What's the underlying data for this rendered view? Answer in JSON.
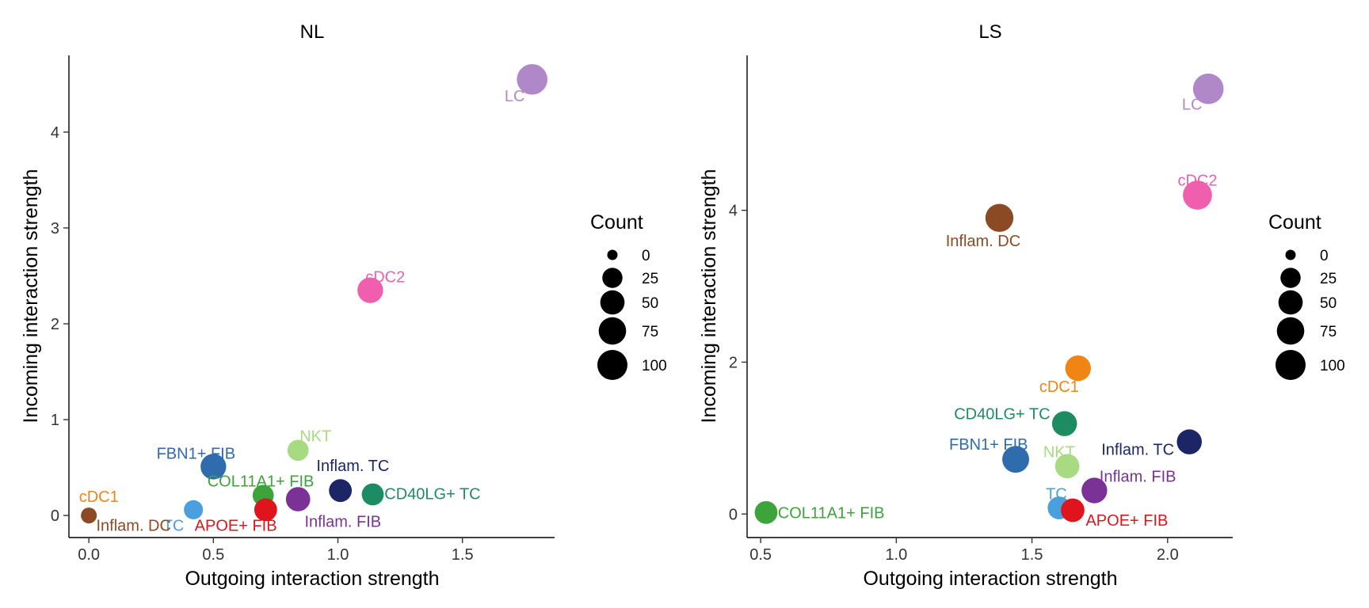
{
  "chart_data": [
    {
      "type": "scatter",
      "title": "NL",
      "xlabel": "Outgoing interaction strength",
      "ylabel": "Incoming interaction strength",
      "xlim": [
        -0.08,
        1.87
      ],
      "ylim": [
        -0.23,
        4.8
      ],
      "xticks": [
        0.0,
        0.5,
        1.0,
        1.5
      ],
      "xtick_labels": [
        "0.0",
        "0.5",
        "1.0",
        "1.5"
      ],
      "yticks": [
        0,
        1,
        2,
        3,
        4
      ],
      "ytick_labels": [
        "0",
        "1",
        "2",
        "3",
        "4"
      ],
      "points": [
        {
          "label": "LC",
          "x": 1.78,
          "y": 4.55,
          "count": 105,
          "color": "#B088C9",
          "label_x": 1.71,
          "label_y": 4.38
        },
        {
          "label": "cDC2",
          "x": 1.13,
          "y": 2.35,
          "count": 60,
          "color": "#F05EAE",
          "label_x": 1.19,
          "label_y": 2.49
        },
        {
          "label": "NKT",
          "x": 0.84,
          "y": 0.68,
          "count": 30,
          "color": "#A8DA81",
          "label_x": 0.91,
          "label_y": 0.83
        },
        {
          "label": "FBN1+ FIB",
          "x": 0.5,
          "y": 0.51,
          "count": 60,
          "color": "#2E6CAE",
          "label_x": 0.43,
          "label_y": 0.65
        },
        {
          "label": "Inflam. TC",
          "x": 1.01,
          "y": 0.26,
          "count": 40,
          "color": "#1C2566",
          "label_x": 1.06,
          "label_y": 0.52
        },
        {
          "label": "COL11A1+ FIB",
          "x": 0.7,
          "y": 0.21,
          "count": 30,
          "color": "#3CA43B",
          "label_x": 0.69,
          "label_y": 0.36
        },
        {
          "label": "CD40LG+ TC",
          "x": 1.14,
          "y": 0.22,
          "count": 35,
          "color": "#1E8C63",
          "label_x": 1.38,
          "label_y": 0.23
        },
        {
          "label": "Inflam. FIB",
          "x": 0.84,
          "y": 0.17,
          "count": 50,
          "color": "#7B3296",
          "label_x": 1.02,
          "label_y": -0.06
        },
        {
          "label": "TC",
          "x": 0.42,
          "y": 0.06,
          "count": 20,
          "color": "#4A9FDF",
          "label_x": 0.34,
          "label_y": -0.1
        },
        {
          "label": "APOE+ FIB",
          "x": 0.71,
          "y": 0.06,
          "count": 40,
          "color": "#E0141C",
          "label_x": 0.59,
          "label_y": -0.1
        },
        {
          "label": "cDC1",
          "x": 0.0,
          "y": 0.0,
          "count": 5,
          "color": "#F08514",
          "label_x": 0.04,
          "label_y": 0.2
        },
        {
          "label": "Inflam. DC",
          "x": 0.0,
          "y": 0.0,
          "count": 8,
          "color": "#8C4A24",
          "label_x": 0.18,
          "label_y": -0.1
        }
      ]
    },
    {
      "type": "scatter",
      "title": "LS",
      "xlabel": "Outgoing interaction strength",
      "ylabel": "Incoming interaction strength",
      "xlim": [
        0.45,
        2.24
      ],
      "ylim": [
        -0.31,
        6.04
      ],
      "xticks": [
        0.5,
        1.0,
        1.5,
        2.0
      ],
      "xtick_labels": [
        "0.5",
        "1.0",
        "1.5",
        "2.0"
      ],
      "yticks": [
        0,
        2,
        4
      ],
      "ytick_labels": [
        "0",
        "2",
        "4"
      ],
      "points": [
        {
          "label": "LC",
          "x": 2.15,
          "y": 5.6,
          "count": 105,
          "color": "#B088C9",
          "label_x": 2.09,
          "label_y": 5.4
        },
        {
          "label": "cDC2",
          "x": 2.11,
          "y": 4.2,
          "count": 90,
          "color": "#F05EAE",
          "label_x": 2.11,
          "label_y": 4.4
        },
        {
          "label": "Inflam. DC",
          "x": 1.38,
          "y": 3.9,
          "count": 80,
          "color": "#8C4A24",
          "label_x": 1.32,
          "label_y": 3.6
        },
        {
          "label": "cDC1",
          "x": 1.67,
          "y": 1.92,
          "count": 60,
          "color": "#F08514",
          "label_x": 1.6,
          "label_y": 1.68
        },
        {
          "label": "CD40LG+ TC",
          "x": 1.62,
          "y": 1.19,
          "count": 55,
          "color": "#1E8C63",
          "label_x": 1.39,
          "label_y": 1.32
        },
        {
          "label": "Inflam. TC",
          "x": 2.08,
          "y": 0.95,
          "count": 55,
          "color": "#1C2566",
          "label_x": 1.89,
          "label_y": 0.85
        },
        {
          "label": "FBN1+ FIB",
          "x": 1.44,
          "y": 0.72,
          "count": 70,
          "color": "#2E6CAE",
          "label_x": 1.34,
          "label_y": 0.92
        },
        {
          "label": "NKT",
          "x": 1.63,
          "y": 0.63,
          "count": 50,
          "color": "#A8DA81",
          "label_x": 1.6,
          "label_y": 0.82
        },
        {
          "label": "Inflam. FIB",
          "x": 1.73,
          "y": 0.31,
          "count": 60,
          "color": "#7B3296",
          "label_x": 1.89,
          "label_y": 0.5
        },
        {
          "label": "TC",
          "x": 1.6,
          "y": 0.08,
          "count": 40,
          "color": "#4A9FDF",
          "label_x": 1.59,
          "label_y": 0.27
        },
        {
          "label": "APOE+ FIB",
          "x": 1.65,
          "y": 0.05,
          "count": 45,
          "color": "#E0141C",
          "label_x": 1.85,
          "label_y": -0.08
        },
        {
          "label": "COL11A1+ FIB",
          "x": 0.52,
          "y": 0.02,
          "count": 40,
          "color": "#3CA43B",
          "label_x": 0.76,
          "label_y": 0.02
        }
      ]
    }
  ],
  "legends": [
    {
      "title": "Count",
      "entries": [
        {
          "label": "0",
          "count": 0
        },
        {
          "label": "25",
          "count": 25
        },
        {
          "label": "50",
          "count": 50
        },
        {
          "label": "75",
          "count": 75
        },
        {
          "label": "100",
          "count": 100
        }
      ]
    },
    {
      "title": "Count",
      "entries": [
        {
          "label": "0",
          "count": 0
        },
        {
          "label": "25",
          "count": 25
        },
        {
          "label": "50",
          "count": 50
        },
        {
          "label": "75",
          "count": 75
        },
        {
          "label": "100",
          "count": 100
        }
      ]
    }
  ]
}
